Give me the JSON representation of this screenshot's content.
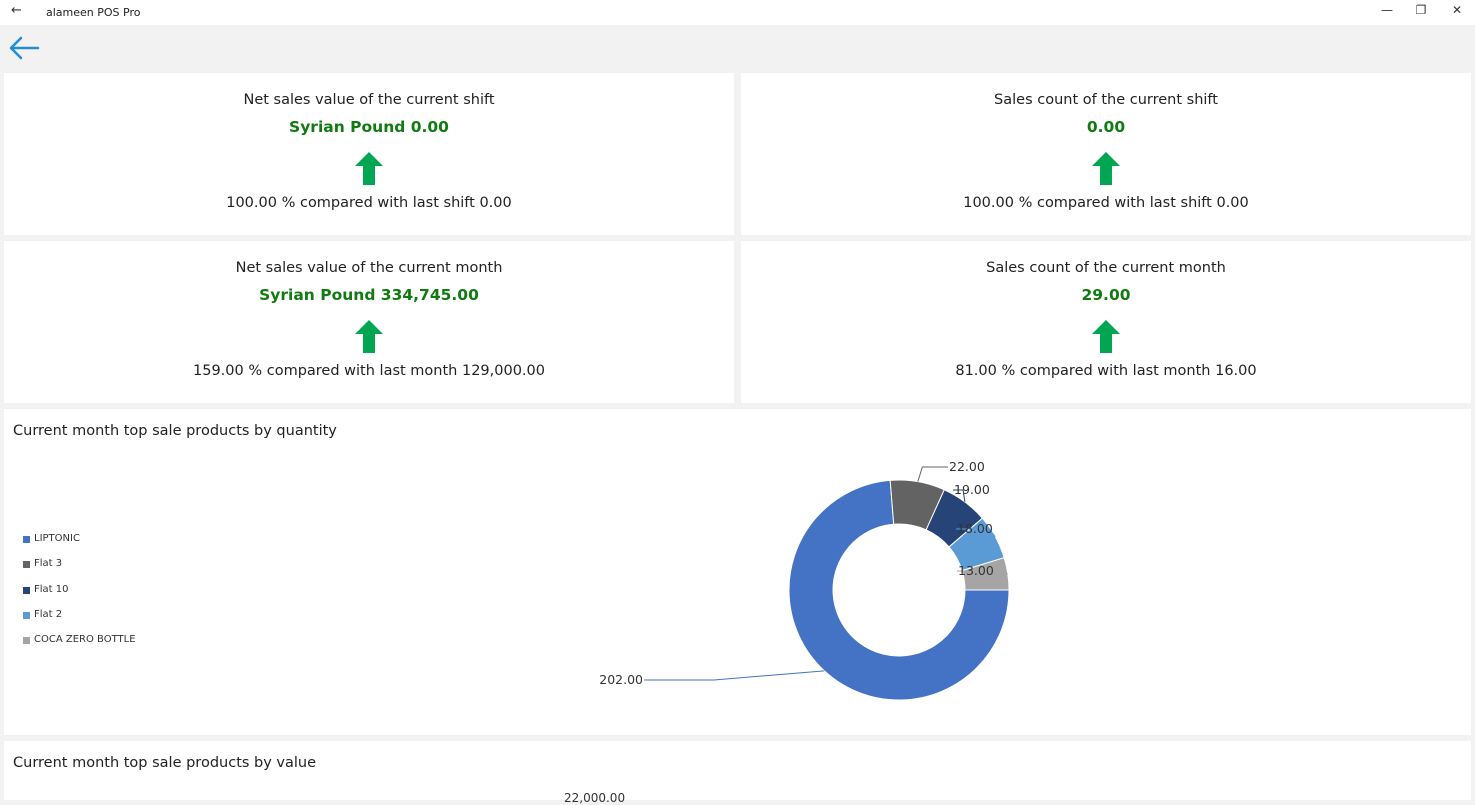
{
  "window": {
    "title": "alameen POS Pro",
    "back_glyph": "←",
    "minimize_glyph": "—",
    "restore_glyph": "❐",
    "close_glyph": "✕"
  },
  "cards": {
    "shift_sales": {
      "label": "Net sales value of the current shift",
      "value": "Syrian Pound 0.00",
      "trend": "up",
      "compare": "100.00 % compared with last shift 0.00"
    },
    "shift_count": {
      "label": "Sales count of the current shift",
      "value": "0.00",
      "trend": "up",
      "compare": "100.00 % compared with last shift 0.00"
    },
    "month_sales": {
      "label": "Net sales value of the current month",
      "value": "Syrian Pound 334,745.00",
      "trend": "up",
      "compare": "159.00 % compared with last month 129,000.00"
    },
    "month_count": {
      "label": "Sales count of the current month",
      "value": "29.00",
      "trend": "up",
      "compare": "81.00 % compared with last month 16.00"
    }
  },
  "colors": {
    "value_green": "#117a11",
    "arrow_green": "#00a651",
    "back_blue": "#1e90d8"
  },
  "qty_chart": {
    "title": "Current month top sale products by quantity"
  },
  "value_chart": {
    "title": "Current month top sale products by value",
    "partial_label": "22,000.00"
  },
  "chart_data": [
    {
      "type": "pie",
      "title": "Current month top sale products by quantity",
      "donut": true,
      "categories": [
        "LIPTONIC",
        "Flat 3",
        "Flat 10",
        "Flat 2",
        "COCA ZERO BOTTLE"
      ],
      "values": [
        202,
        22,
        19,
        18,
        13
      ],
      "value_labels": [
        "202.00",
        "22.00",
        "19.00",
        "18.00",
        "13.00"
      ],
      "colors": [
        "#4472c4",
        "#636363",
        "#264478",
        "#5b9bd5",
        "#a5a5a5"
      ],
      "legend": "left"
    }
  ]
}
